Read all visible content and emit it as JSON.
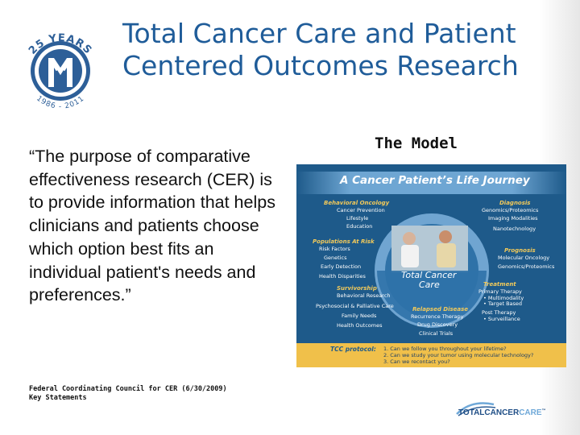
{
  "slide": {
    "title_line1": "Total Cancer Care and Patient",
    "title_line2": "Centered Outcomes Research",
    "quote": "“The purpose of comparative effectiveness research (CER) is to provide information that helps clinicians and patients choose which option best fits an individual patient's needs and preferences.”",
    "citation_line1": "Federal Coordinating Council for CER (6/30/2009)",
    "citation_line2": "Key Statements",
    "model_heading": "The Model"
  },
  "anniversary_logo": {
    "text_top": "25 YEARS",
    "text_bottom": "1986 - 2011",
    "color": "#2d5f98"
  },
  "diagram": {
    "header": "A Cancer Patient’s Life Journey",
    "center": [
      "Total Cancer",
      "Care"
    ],
    "sections": {
      "behavioral_oncology": {
        "heading": "Behavioral Oncology",
        "items": [
          "Cancer Prevention",
          "Lifestyle",
          "Education"
        ]
      },
      "diagnosis": {
        "heading": "Diagnosis",
        "items": [
          "Genomics/Proteomics",
          "Imaging Modalities",
          "Nanotechnology"
        ]
      },
      "populations_at_risk": {
        "heading": "Populations At Risk",
        "items": [
          "Risk Factors",
          "Genetics",
          "Early Detection",
          "Health Disparities"
        ]
      },
      "prognosis": {
        "heading": "Prognosis",
        "items": [
          "Molecular Oncology",
          "Genomics/Proteomics"
        ]
      },
      "survivorship": {
        "heading": "Survivorship",
        "items": [
          "Behavioral Research",
          "Psychosocial & Palliative Care",
          "Family Needs",
          "Health Outcomes"
        ]
      },
      "treatment": {
        "heading": "Treatment",
        "items": [
          "Primary Therapy",
          "• Multimodality",
          "• Target Based",
          "Post Therapy",
          "• Surveillance"
        ]
      },
      "relapsed_disease": {
        "heading": "Relapsed Disease",
        "items": [
          "Recurrence Therapy",
          "Drug Discovery",
          "Clinical Trials"
        ]
      }
    },
    "protocol_label": "TCC protocol:",
    "protocol_items": [
      "1. Can we follow you throughout your lifetime?",
      "2. Can we study your tumor using molecular technology?",
      "3. Can we recontact you?"
    ]
  },
  "footer_logo": {
    "part1": "TOTAL",
    "part2": "CANCER",
    "part3": "CARE",
    "tm": "™"
  },
  "colors": {
    "title": "#1f5c99",
    "diagram_bg": "#1e5a8a",
    "diagram_accent": "#f1c95a",
    "footer_bar": "#f0c04a"
  }
}
